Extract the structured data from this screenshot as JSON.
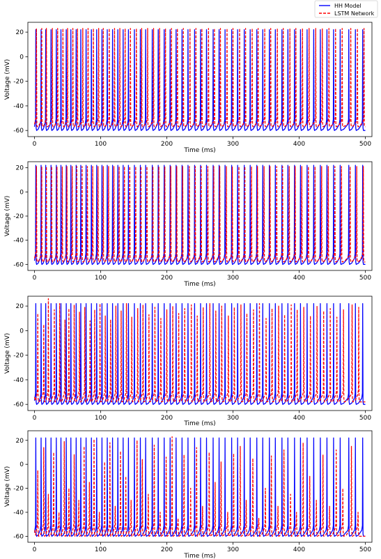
{
  "legend": {
    "entries": [
      {
        "label": "HH Model",
        "color": "#0000ff",
        "style": "solid"
      },
      {
        "label": "LSTM Network",
        "color": "#ff0000",
        "style": "dashed"
      }
    ],
    "placement": "top-right"
  },
  "chart_data": [
    {
      "type": "line",
      "xlabel": "Time (ms)",
      "ylabel": "Voltage (mV)",
      "xlim": [
        -10,
        510
      ],
      "ylim": [
        -65,
        28
      ],
      "xticks": [
        0,
        100,
        200,
        300,
        400,
        500
      ],
      "yticks": [
        -60,
        -40,
        -20,
        0,
        20
      ],
      "grid": false,
      "series": [
        {
          "name": "HH Model",
          "color": "#0000ff",
          "style": "solid",
          "peak": 22,
          "rest": -57,
          "trough": -60,
          "spike_times": [
            2,
            10,
            17,
            25,
            33,
            40,
            48,
            55,
            63,
            70,
            78,
            86,
            94,
            102,
            110,
            118,
            126,
            134,
            142,
            151,
            160,
            168,
            178,
            187,
            196,
            205,
            214,
            223,
            232,
            242,
            251,
            260,
            270,
            279,
            288,
            298,
            307,
            317,
            326,
            336,
            345,
            355,
            364,
            374,
            383,
            393,
            402,
            412,
            422,
            432,
            442,
            452,
            462,
            475,
            485,
            496
          ]
        },
        {
          "name": "LSTM Network",
          "color": "#ff0000",
          "style": "dashed",
          "peak": 23,
          "rest": -55,
          "trough": -57,
          "spike_times": [
            3,
            11,
            18,
            27,
            35,
            43,
            50,
            58,
            65,
            73,
            81,
            89,
            97,
            104,
            113,
            121,
            129,
            137,
            145,
            154,
            162,
            171,
            180,
            189,
            198,
            207,
            216,
            225,
            235,
            244,
            253,
            263,
            272,
            281,
            291,
            300,
            310,
            319,
            329,
            338,
            348,
            357,
            367,
            376,
            386,
            395,
            405,
            415,
            425,
            435,
            445,
            455,
            465,
            478,
            488,
            498
          ]
        }
      ]
    },
    {
      "type": "line",
      "xlabel": "Time (ms)",
      "ylabel": "Voltage (mV)",
      "xlim": [
        -10,
        510
      ],
      "ylim": [
        -65,
        25
      ],
      "xticks": [
        0,
        100,
        200,
        300,
        400,
        500
      ],
      "yticks": [
        -60,
        -40,
        -20,
        0,
        20
      ],
      "grid": false,
      "series": [
        {
          "name": "HH Model",
          "color": "#0000ff",
          "style": "solid",
          "peak": 22,
          "rest": -57,
          "trough": -60,
          "spike_times": [
            2,
            10,
            17,
            25,
            33,
            40,
            48,
            55,
            63,
            70,
            78,
            86,
            94,
            102,
            110,
            118,
            126,
            134,
            142,
            151,
            160,
            168,
            178,
            187,
            196,
            205,
            214,
            223,
            232,
            242,
            251,
            260,
            270,
            279,
            288,
            298,
            307,
            317,
            326,
            336,
            345,
            355,
            364,
            374,
            383,
            393,
            402,
            412,
            422,
            432,
            442,
            452,
            462,
            475,
            485,
            496
          ]
        },
        {
          "name": "LSTM Network",
          "color": "#ff0000",
          "style": "dashed",
          "peak": 21,
          "rest": -55,
          "trough": -58,
          "spike_times": [
            3,
            11,
            18,
            26,
            34,
            42,
            49,
            57,
            64,
            72,
            80,
            88,
            96,
            104,
            112,
            120,
            128,
            136,
            144,
            153,
            161,
            170,
            179,
            188,
            197,
            206,
            215,
            224,
            234,
            243,
            252,
            262,
            271,
            280,
            290,
            299,
            309,
            318,
            328,
            337,
            347,
            356,
            366,
            375,
            385,
            394,
            404,
            414,
            424,
            434,
            444,
            454,
            464,
            477,
            487,
            497
          ]
        }
      ]
    },
    {
      "type": "line",
      "xlabel": "Time (ms)",
      "ylabel": "Voltage (mV)",
      "xlim": [
        -10,
        510
      ],
      "ylim": [
        -65,
        28
      ],
      "xticks": [
        0,
        100,
        200,
        300,
        400,
        500
      ],
      "yticks": [
        -60,
        -40,
        -20,
        0,
        20
      ],
      "grid": false,
      "series": [
        {
          "name": "HH Model",
          "color": "#0000ff",
          "style": "solid",
          "peak": 22,
          "rest": -57,
          "trough": -60,
          "spike_times": [
            2,
            10,
            17,
            25,
            33,
            40,
            48,
            55,
            63,
            70,
            78,
            86,
            94,
            102,
            110,
            118,
            126,
            134,
            142,
            151,
            160,
            168,
            178,
            187,
            196,
            205,
            214,
            223,
            232,
            242,
            251,
            260,
            270,
            279,
            288,
            298,
            307,
            317,
            326,
            336,
            345,
            355,
            364,
            374,
            383,
            393,
            402,
            412,
            422,
            432,
            442,
            452,
            462,
            475,
            485,
            496
          ]
        },
        {
          "name": "LSTM Network",
          "color": "#ff0000",
          "style": "dashed",
          "peak": 12,
          "rest": -54,
          "trough": -58,
          "spike_times": [
            5,
            14,
            21,
            30,
            38,
            46,
            52,
            60,
            68,
            76,
            84,
            91,
            99,
            107,
            115,
            123,
            131,
            139,
            147,
            156,
            164,
            173,
            182,
            191,
            200,
            209,
            218,
            227,
            237,
            246,
            255,
            265,
            274,
            283,
            293,
            302,
            312,
            321,
            331,
            340,
            350,
            359,
            369,
            378,
            388,
            397,
            407,
            417,
            427,
            437,
            447,
            457,
            467,
            480,
            490
          ],
          "peaks": [
            14,
            5,
            26,
            17,
            22,
            9,
            18,
            21,
            15,
            19,
            8,
            17,
            22,
            12,
            9,
            20,
            16,
            22,
            11,
            18,
            21,
            13,
            19,
            10,
            17,
            20,
            14,
            18,
            21,
            12,
            19,
            22,
            16,
            20,
            12,
            19,
            21,
            14,
            17,
            22,
            10,
            18,
            20,
            13,
            21,
            17,
            19,
            12,
            20,
            16,
            18,
            11,
            17,
            21,
            19
          ]
        }
      ]
    },
    {
      "type": "line",
      "xlabel": "Time (ms)",
      "ylabel": "Voltage (mV)",
      "xlim": [
        -10,
        510
      ],
      "ylim": [
        -65,
        28
      ],
      "xticks": [
        0,
        100,
        200,
        300,
        400,
        500
      ],
      "yticks": [
        -60,
        -40,
        -20,
        0,
        20
      ],
      "grid": false,
      "series": [
        {
          "name": "HH Model",
          "color": "#0000ff",
          "style": "solid",
          "peak": 22,
          "rest": -57,
          "trough": -60,
          "spike_times": [
            2,
            10,
            17,
            25,
            33,
            40,
            48,
            55,
            63,
            70,
            78,
            86,
            94,
            102,
            110,
            118,
            126,
            134,
            142,
            151,
            160,
            168,
            178,
            187,
            196,
            205,
            214,
            223,
            232,
            242,
            251,
            260,
            270,
            279,
            288,
            298,
            307,
            317,
            326,
            336,
            345,
            355,
            364,
            374,
            383,
            393,
            402,
            412,
            422,
            432,
            442,
            452,
            462,
            475,
            485,
            496
          ]
        },
        {
          "name": "LSTM Network",
          "color": "#ff0000",
          "style": "dashed",
          "peak": 5,
          "rest": -55,
          "trough": -60,
          "spike_times": [
            5,
            14,
            21,
            29,
            37,
            45,
            52,
            60,
            67,
            75,
            83,
            90,
            98,
            106,
            114,
            122,
            130,
            138,
            146,
            155,
            163,
            172,
            181,
            190,
            199,
            208,
            217,
            226,
            236,
            245,
            254,
            264,
            273,
            282,
            292,
            301,
            311,
            320,
            330,
            339,
            349,
            358,
            368,
            377,
            387,
            396,
            406,
            416,
            426,
            436,
            446,
            456,
            466,
            479,
            489
          ],
          "peaks": [
            -5,
            14,
            -25,
            10,
            -40,
            19,
            -20,
            8,
            -30,
            15,
            -15,
            21,
            -40,
            2,
            18,
            -35,
            11,
            -10,
            -30,
            20,
            4,
            -25,
            16,
            -40,
            6,
            23,
            -45,
            8,
            -20,
            14,
            -35,
            10,
            -15,
            2,
            -40,
            9,
            15,
            -30,
            5,
            -45,
            -20,
            7,
            -35,
            12,
            -25,
            -40,
            18,
            -10,
            -30,
            8,
            -35,
            12,
            -20,
            15,
            -40
          ]
        }
      ]
    }
  ]
}
